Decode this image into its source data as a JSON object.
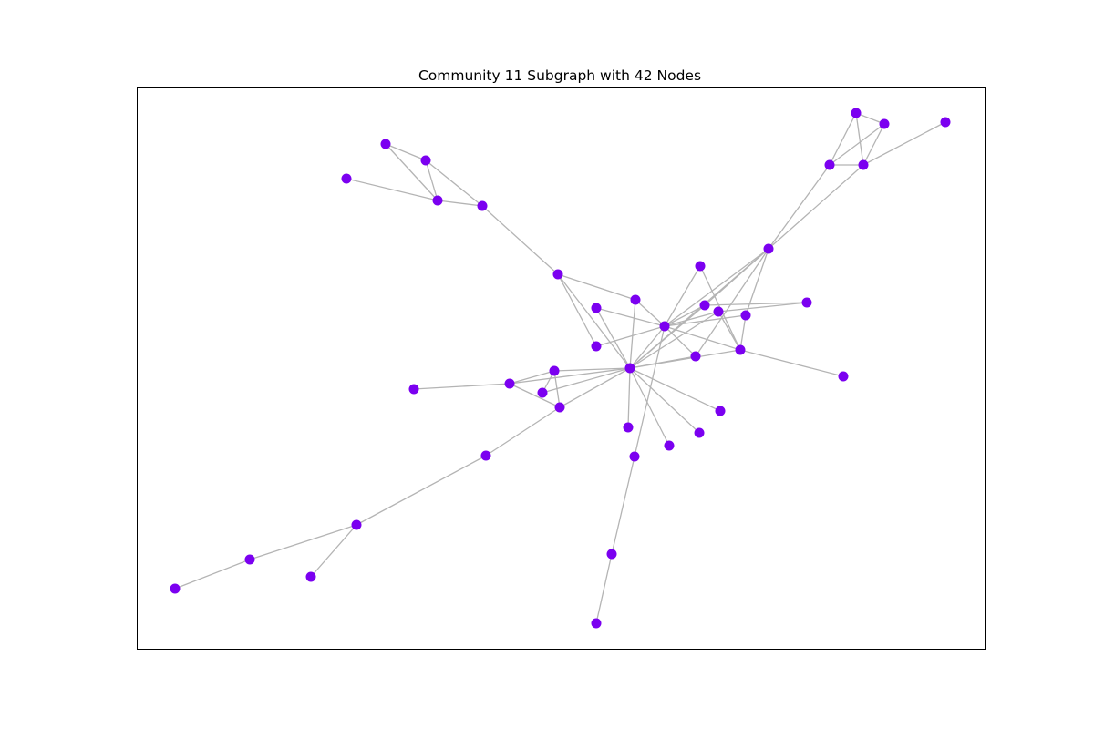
{
  "title": "Community 11 Subgraph with 42 Nodes",
  "colors": {
    "node": "#7b00f0",
    "edge": "#b4b4b4",
    "frame": "#000000",
    "background": "#ffffff"
  }
}
